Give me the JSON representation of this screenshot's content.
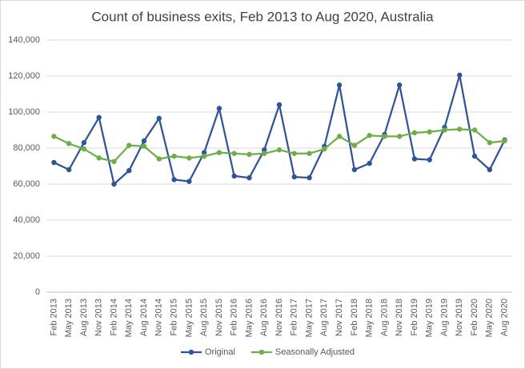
{
  "chart_data": {
    "type": "line",
    "title": "Count of business exits, Feb 2013 to Aug 2020, Australia",
    "categories": [
      "Feb 2013",
      "May 2013",
      "Aug 2013",
      "Nov 2013",
      "Feb 2014",
      "May 2014",
      "Aug 2014",
      "Nov 2014",
      "Feb 2015",
      "May 2015",
      "Aug 2015",
      "Nov 2015",
      "Feb 2016",
      "May 2016",
      "Aug 2016",
      "Nov 2016",
      "Feb 2017",
      "May 2017",
      "Aug 2017",
      "Nov 2017",
      "Feb 2018",
      "May 2018",
      "Aug 2018",
      "Nov 2018",
      "Feb 2019",
      "May 2019",
      "Aug 2019",
      "Nov 2019",
      "Feb 2020",
      "May 2020",
      "Aug 2020"
    ],
    "series": [
      {
        "name": "Original",
        "color": "#2f5597",
        "values": [
          72000,
          68000,
          83000,
          97000,
          60000,
          67500,
          84000,
          96500,
          62500,
          61500,
          77500,
          102000,
          64500,
          63500,
          79000,
          104000,
          64000,
          63500,
          81000,
          115000,
          68000,
          71500,
          87500,
          115000,
          74000,
          73500,
          91500,
          120500,
          75500,
          68000,
          84500
        ]
      },
      {
        "name": "Seasonally Adjusted",
        "color": "#70ad47",
        "values": [
          86500,
          82500,
          79500,
          74500,
          72500,
          81500,
          81000,
          74000,
          75500,
          74500,
          75500,
          77500,
          77000,
          76500,
          77000,
          79000,
          77000,
          77000,
          79500,
          86500,
          81500,
          87000,
          86500,
          86500,
          88500,
          89000,
          90000,
          90500,
          90000,
          83000,
          84000
        ]
      }
    ],
    "ylim": [
      0,
      140000
    ],
    "yticks": [
      0,
      {
        "value": 20000,
        "label": "20,000"
      },
      {
        "value": 40000,
        "label": "40,000"
      },
      {
        "value": 60000,
        "label": "60,000"
      },
      {
        "value": 80000,
        "label": "80,000"
      },
      {
        "value": 100000,
        "label": "100,000"
      },
      {
        "value": 120000,
        "label": "120,000"
      },
      {
        "value": 140000,
        "label": "140,000"
      }
    ],
    "grid": true,
    "legend": "bottom"
  }
}
